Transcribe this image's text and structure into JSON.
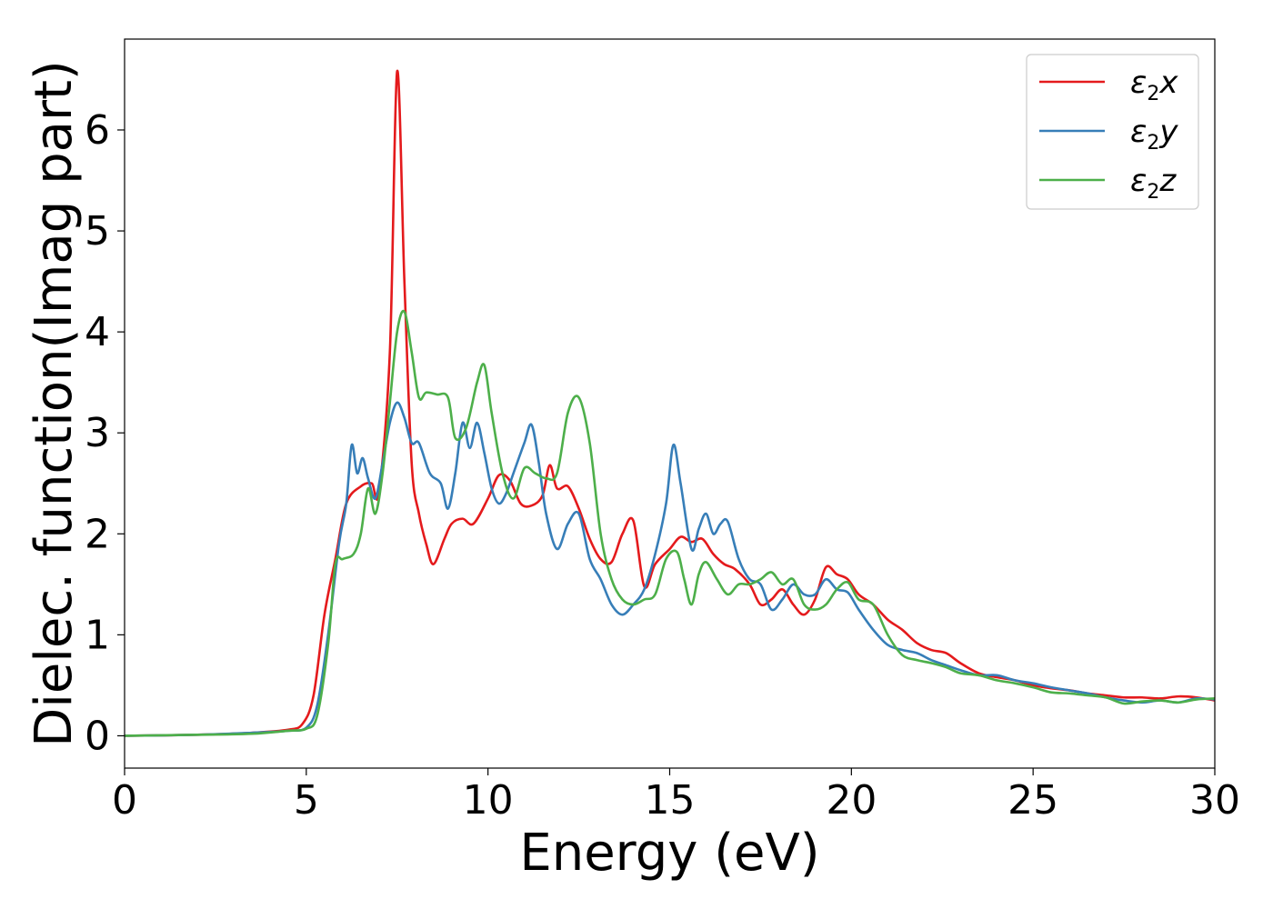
{
  "chart_data": {
    "type": "line",
    "title": "",
    "xlabel": "Energy (eV)",
    "ylabel": "Dielec. function(Imag part)",
    "xlim": [
      0,
      30
    ],
    "ylim": [
      -0.32,
      6.9
    ],
    "xticks": [
      0,
      5,
      10,
      15,
      20,
      25,
      30
    ],
    "yticks": [
      0,
      1,
      2,
      3,
      4,
      5,
      6
    ],
    "grid": false,
    "legend_position": "top-right",
    "series": [
      {
        "name": "ε₂x",
        "label_base": "ε",
        "label_sub": "2",
        "label_tail": "x",
        "color": "#e41a1c",
        "x": [
          0,
          2,
          3.5,
          4.5,
          4.9,
          5.2,
          5.5,
          5.8,
          6.1,
          6.5,
          6.8,
          7.0,
          7.3,
          7.5,
          7.7,
          7.9,
          8.1,
          8.3,
          8.5,
          8.8,
          9.0,
          9.3,
          9.6,
          10.0,
          10.3,
          10.6,
          10.9,
          11.2,
          11.5,
          11.7,
          11.9,
          12.2,
          12.5,
          12.8,
          13.1,
          13.4,
          13.7,
          14.0,
          14.3,
          14.6,
          15.0,
          15.3,
          15.6,
          15.9,
          16.2,
          16.5,
          16.8,
          17.2,
          17.5,
          17.8,
          18.1,
          18.4,
          18.7,
          19.0,
          19.3,
          19.6,
          19.9,
          20.2,
          20.6,
          21.0,
          21.4,
          21.8,
          22.2,
          22.6,
          23.0,
          23.5,
          24.0,
          24.5,
          25.0,
          25.5,
          26.0,
          26.5,
          27.0,
          27.5,
          28.0,
          28.5,
          29.0,
          29.5,
          30.0
        ],
        "y": [
          0,
          0.01,
          0.03,
          0.06,
          0.12,
          0.4,
          1.2,
          1.75,
          2.3,
          2.47,
          2.5,
          2.42,
          3.8,
          6.58,
          4.5,
          2.7,
          2.2,
          1.9,
          1.7,
          1.95,
          2.1,
          2.15,
          2.1,
          2.35,
          2.58,
          2.53,
          2.3,
          2.28,
          2.38,
          2.68,
          2.45,
          2.47,
          2.25,
          1.95,
          1.75,
          1.72,
          2.0,
          2.13,
          1.48,
          1.7,
          1.85,
          1.97,
          1.92,
          1.95,
          1.8,
          1.7,
          1.65,
          1.5,
          1.3,
          1.35,
          1.45,
          1.3,
          1.2,
          1.35,
          1.67,
          1.6,
          1.55,
          1.4,
          1.3,
          1.15,
          1.05,
          0.92,
          0.85,
          0.82,
          0.72,
          0.62,
          0.58,
          0.55,
          0.5,
          0.47,
          0.45,
          0.42,
          0.4,
          0.38,
          0.38,
          0.37,
          0.39,
          0.38,
          0.35
        ]
      },
      {
        "name": "ε₂y",
        "label_base": "ε",
        "label_sub": "2",
        "label_tail": "y",
        "color": "#377eb8",
        "x": [
          0,
          2,
          3.5,
          4.5,
          5.0,
          5.3,
          5.6,
          5.9,
          6.1,
          6.25,
          6.4,
          6.55,
          6.7,
          6.9,
          7.1,
          7.3,
          7.5,
          7.7,
          7.9,
          8.1,
          8.4,
          8.7,
          8.9,
          9.1,
          9.3,
          9.5,
          9.7,
          9.9,
          10.1,
          10.3,
          10.5,
          10.7,
          11.0,
          11.2,
          11.4,
          11.6,
          11.9,
          12.2,
          12.5,
          12.8,
          13.1,
          13.4,
          13.7,
          14.0,
          14.3,
          14.6,
          14.9,
          15.1,
          15.3,
          15.6,
          15.8,
          16.0,
          16.2,
          16.4,
          16.6,
          16.9,
          17.2,
          17.5,
          17.8,
          18.1,
          18.4,
          18.7,
          19.0,
          19.3,
          19.6,
          19.9,
          20.2,
          20.6,
          21.0,
          21.4,
          21.8,
          22.2,
          22.6,
          23.0,
          23.5,
          24.0,
          24.5,
          25.0,
          25.5,
          26.0,
          26.5,
          27.0,
          27.5,
          28.0,
          28.5,
          29.0,
          29.5,
          30.0
        ],
        "y": [
          0,
          0.01,
          0.03,
          0.05,
          0.08,
          0.3,
          1.0,
          1.9,
          2.3,
          2.88,
          2.6,
          2.75,
          2.55,
          2.35,
          2.7,
          3.1,
          3.3,
          3.15,
          2.9,
          2.9,
          2.6,
          2.5,
          2.25,
          2.6,
          3.1,
          2.85,
          3.1,
          2.8,
          2.45,
          2.3,
          2.4,
          2.6,
          2.9,
          3.08,
          2.7,
          2.2,
          1.85,
          2.1,
          2.2,
          1.75,
          1.55,
          1.3,
          1.2,
          1.3,
          1.45,
          1.8,
          2.3,
          2.88,
          2.5,
          1.85,
          2.05,
          2.2,
          2.0,
          2.1,
          2.12,
          1.75,
          1.55,
          1.5,
          1.25,
          1.35,
          1.5,
          1.4,
          1.4,
          1.55,
          1.45,
          1.42,
          1.25,
          1.05,
          0.9,
          0.85,
          0.82,
          0.75,
          0.7,
          0.65,
          0.6,
          0.6,
          0.55,
          0.52,
          0.48,
          0.45,
          0.42,
          0.38,
          0.35,
          0.33,
          0.35,
          0.33,
          0.37,
          0.36
        ]
      },
      {
        "name": "ε₂z",
        "label_base": "ε",
        "label_sub": "2",
        "label_tail": "z",
        "color": "#4daf4a",
        "x": [
          0,
          2,
          3.5,
          4.5,
          5.0,
          5.3,
          5.6,
          5.8,
          6.0,
          6.3,
          6.5,
          6.7,
          6.9,
          7.1,
          7.3,
          7.5,
          7.7,
          7.9,
          8.1,
          8.3,
          8.6,
          8.9,
          9.1,
          9.4,
          9.7,
          9.9,
          10.1,
          10.4,
          10.7,
          11.0,
          11.3,
          11.6,
          11.9,
          12.2,
          12.5,
          12.8,
          13.1,
          13.4,
          13.7,
          14.0,
          14.3,
          14.6,
          14.9,
          15.2,
          15.4,
          15.6,
          15.8,
          16.0,
          16.3,
          16.6,
          16.9,
          17.2,
          17.5,
          17.8,
          18.1,
          18.4,
          18.7,
          19.0,
          19.3,
          19.6,
          19.9,
          20.2,
          20.6,
          21.0,
          21.4,
          21.8,
          22.2,
          22.6,
          23.0,
          23.5,
          24.0,
          24.5,
          25.0,
          25.5,
          26.0,
          26.5,
          27.0,
          27.5,
          28.0,
          28.5,
          29.0,
          29.5,
          30.0
        ],
        "y": [
          0,
          0.01,
          0.02,
          0.05,
          0.07,
          0.2,
          0.9,
          1.7,
          1.75,
          1.8,
          2.0,
          2.45,
          2.2,
          2.6,
          3.3,
          4.0,
          4.2,
          3.8,
          3.35,
          3.4,
          3.38,
          3.35,
          2.95,
          3.05,
          3.5,
          3.67,
          3.2,
          2.6,
          2.35,
          2.65,
          2.6,
          2.55,
          2.6,
          3.2,
          3.35,
          2.9,
          2.0,
          1.55,
          1.35,
          1.3,
          1.35,
          1.4,
          1.75,
          1.82,
          1.55,
          1.3,
          1.6,
          1.72,
          1.55,
          1.4,
          1.5,
          1.5,
          1.55,
          1.62,
          1.5,
          1.55,
          1.3,
          1.25,
          1.3,
          1.45,
          1.52,
          1.35,
          1.3,
          1.0,
          0.8,
          0.75,
          0.72,
          0.68,
          0.62,
          0.6,
          0.55,
          0.52,
          0.48,
          0.43,
          0.42,
          0.4,
          0.38,
          0.32,
          0.34,
          0.35,
          0.33,
          0.36,
          0.37
        ]
      }
    ]
  }
}
